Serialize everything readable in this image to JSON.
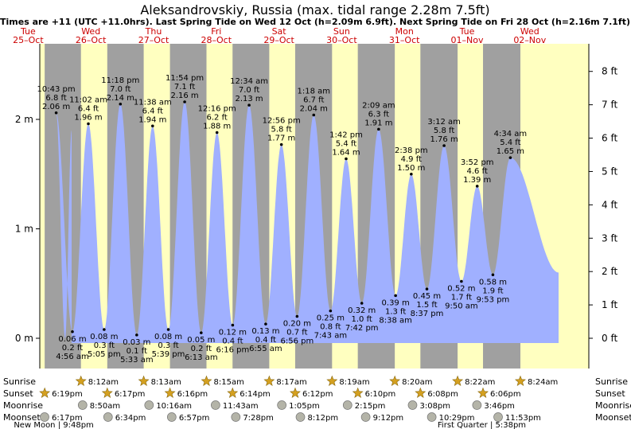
{
  "chart_data": {
    "type": "area",
    "title": "Aleksandrovskiy, Russia (max. tidal range 2.28m 7.5ft)",
    "subtitle": "Times are +11 (UTC +11.0hrs). Last Spring Tide on Wed 12 Oct (h=2.09m 6.9ft). Next Spring Tide on Fri 28 Oct (h=2.16m 7.1ft)",
    "days": [
      {
        "dow": "Tue",
        "date": "25–Oct"
      },
      {
        "dow": "Wed",
        "date": "26–Oct"
      },
      {
        "dow": "Thu",
        "date": "27–Oct"
      },
      {
        "dow": "Fri",
        "date": "28–Oct"
      },
      {
        "dow": "Sat",
        "date": "29–Oct"
      },
      {
        "dow": "Sun",
        "date": "30–Oct"
      },
      {
        "dow": "Mon",
        "date": "31–Oct"
      },
      {
        "dow": "Tue",
        "date": "01–Nov"
      },
      {
        "dow": "Wed",
        "date": "02–Nov"
      }
    ],
    "y_left_ticks": [
      {
        "value": 0,
        "label": "0 m"
      },
      {
        "value": 1,
        "label": "1 m"
      },
      {
        "value": 2,
        "label": "2 m"
      }
    ],
    "y_right_ticks": [
      {
        "value": 0,
        "label": "0 ft"
      },
      {
        "value": 1,
        "label": "1 ft"
      },
      {
        "value": 2,
        "label": "2 ft"
      },
      {
        "value": 3,
        "label": "3 ft"
      },
      {
        "value": 4,
        "label": "4 ft"
      },
      {
        "value": 5,
        "label": "5 ft"
      },
      {
        "value": 6,
        "label": "6 ft"
      },
      {
        "value": 7,
        "label": "7 ft"
      },
      {
        "value": 8,
        "label": "8 ft"
      }
    ],
    "ylim_m": [
      -0.25,
      2.62
    ],
    "start_value_m": 1.9,
    "end_value_m": 0.6,
    "tides": [
      {
        "type": "high",
        "day": 0,
        "hour": 22.72,
        "time": "10:43 pm",
        "ft": "6.8 ft",
        "m": "2.06 m",
        "value": 2.06
      },
      {
        "type": "low",
        "day": 1,
        "hour": 4.93,
        "time": "4:56 am",
        "ft": "0.2 ft",
        "m": "0.06 m",
        "value": 0.06
      },
      {
        "type": "high",
        "day": 1,
        "hour": 11.03,
        "time": "11:02 am",
        "ft": "6.4 ft",
        "m": "1.96 m",
        "value": 1.96
      },
      {
        "type": "low",
        "day": 1,
        "hour": 17.08,
        "time": "5:05 pm",
        "ft": "0.3 ft",
        "m": "0.08 m",
        "value": 0.08
      },
      {
        "type": "high",
        "day": 1,
        "hour": 23.3,
        "time": "11:18 pm",
        "ft": "7.0 ft",
        "m": "2.14 m",
        "value": 2.14
      },
      {
        "type": "low",
        "day": 2,
        "hour": 5.55,
        "time": "5:33 am",
        "ft": "0.1 ft",
        "m": "0.03 m",
        "value": 0.03
      },
      {
        "type": "high",
        "day": 2,
        "hour": 11.63,
        "time": "11:38 am",
        "ft": "6.4 ft",
        "m": "1.94 m",
        "value": 1.94
      },
      {
        "type": "low",
        "day": 2,
        "hour": 17.65,
        "time": "5:39 pm",
        "ft": "0.3 ft",
        "m": "0.08 m",
        "value": 0.08
      },
      {
        "type": "high",
        "day": 2,
        "hour": 23.9,
        "time": "11:54 pm",
        "ft": "7.1 ft",
        "m": "2.16 m",
        "value": 2.16
      },
      {
        "type": "low",
        "day": 3,
        "hour": 6.22,
        "time": "6:13 am",
        "ft": "0.2 ft",
        "m": "0.05 m",
        "value": 0.05
      },
      {
        "type": "high",
        "day": 3,
        "hour": 12.27,
        "time": "12:16 pm",
        "ft": "6.2 ft",
        "m": "1.88 m",
        "value": 1.88
      },
      {
        "type": "low",
        "day": 3,
        "hour": 18.27,
        "time": "6:16 pm",
        "ft": "0.4 ft",
        "m": "0.12 m",
        "value": 0.12
      },
      {
        "type": "high",
        "day": 4,
        "hour": 0.57,
        "time": "12:34 am",
        "ft": "7.0 ft",
        "m": "2.13 m",
        "value": 2.13
      },
      {
        "type": "low",
        "day": 4,
        "hour": 6.92,
        "time": "6:55 am",
        "ft": "0.4 ft",
        "m": "0.13 m",
        "value": 0.13
      },
      {
        "type": "high",
        "day": 4,
        "hour": 12.93,
        "time": "12:56 pm",
        "ft": "5.8 ft",
        "m": "1.77 m",
        "value": 1.77
      },
      {
        "type": "low",
        "day": 4,
        "hour": 18.93,
        "time": "6:56 pm",
        "ft": "0.7 ft",
        "m": "0.20 m",
        "value": 0.2
      },
      {
        "type": "high",
        "day": 5,
        "hour": 1.3,
        "time": "1:18 am",
        "ft": "6.7 ft",
        "m": "2.04 m",
        "value": 2.04
      },
      {
        "type": "low",
        "day": 5,
        "hour": 7.72,
        "time": "7:43 am",
        "ft": "0.8 ft",
        "m": "0.25 m",
        "value": 0.25
      },
      {
        "type": "high",
        "day": 5,
        "hour": 13.7,
        "time": "1:42 pm",
        "ft": "5.4 ft",
        "m": "1.64 m",
        "value": 1.64
      },
      {
        "type": "low",
        "day": 5,
        "hour": 19.7,
        "time": "7:42 pm",
        "ft": "1.0 ft",
        "m": "0.32 m",
        "value": 0.32
      },
      {
        "type": "high",
        "day": 6,
        "hour": 2.15,
        "time": "2:09 am",
        "ft": "6.3 ft",
        "m": "1.91 m",
        "value": 1.91
      },
      {
        "type": "low",
        "day": 6,
        "hour": 8.63,
        "time": "8:38 am",
        "ft": "1.3 ft",
        "m": "0.39 m",
        "value": 0.39
      },
      {
        "type": "high",
        "day": 6,
        "hour": 14.63,
        "time": "2:38 pm",
        "ft": "4.9 ft",
        "m": "1.50 m",
        "value": 1.5
      },
      {
        "type": "low",
        "day": 6,
        "hour": 20.62,
        "time": "8:37 pm",
        "ft": "1.5 ft",
        "m": "0.45 m",
        "value": 0.45
      },
      {
        "type": "high",
        "day": 7,
        "hour": 3.2,
        "time": "3:12 am",
        "ft": "5.8 ft",
        "m": "1.76 m",
        "value": 1.76
      },
      {
        "type": "low",
        "day": 7,
        "hour": 9.83,
        "time": "9:50 am",
        "ft": "1.7 ft",
        "m": "0.52 m",
        "value": 0.52
      },
      {
        "type": "high",
        "day": 7,
        "hour": 15.87,
        "time": "3:52 pm",
        "ft": "4.6 ft",
        "m": "1.39 m",
        "value": 1.39
      },
      {
        "type": "low",
        "day": 7,
        "hour": 21.88,
        "time": "9:53 pm",
        "ft": "1.9 ft",
        "m": "0.58 m",
        "value": 0.58
      },
      {
        "type": "high",
        "day": 8,
        "hour": 4.57,
        "time": "4:34 am",
        "ft": "5.4 ft",
        "m": "1.65 m",
        "value": 1.65
      }
    ],
    "sun_moon": {
      "rows": [
        "Sunrise",
        "Sunset",
        "Moonrise",
        "Moonset"
      ],
      "sunrise": [
        {
          "day": 1,
          "hour": 8.2,
          "time": "8:12am"
        },
        {
          "day": 2,
          "hour": 8.22,
          "time": "8:13am"
        },
        {
          "day": 3,
          "hour": 8.25,
          "time": "8:15am"
        },
        {
          "day": 4,
          "hour": 8.28,
          "time": "8:17am"
        },
        {
          "day": 5,
          "hour": 8.32,
          "time": "8:19am"
        },
        {
          "day": 6,
          "hour": 8.33,
          "time": "8:20am"
        },
        {
          "day": 7,
          "hour": 8.37,
          "time": "8:22am"
        },
        {
          "day": 8,
          "hour": 8.4,
          "time": "8:24am"
        }
      ],
      "sunset": [
        {
          "day": 0,
          "hour": 18.32,
          "time": "6:19pm"
        },
        {
          "day": 1,
          "hour": 18.28,
          "time": "6:17pm"
        },
        {
          "day": 2,
          "hour": 18.27,
          "time": "6:16pm"
        },
        {
          "day": 3,
          "hour": 18.23,
          "time": "6:14pm"
        },
        {
          "day": 4,
          "hour": 18.2,
          "time": "6:12pm"
        },
        {
          "day": 5,
          "hour": 18.17,
          "time": "6:10pm"
        },
        {
          "day": 6,
          "hour": 18.13,
          "time": "6:08pm"
        },
        {
          "day": 7,
          "hour": 18.1,
          "time": "6:06pm"
        }
      ],
      "moonrise": [
        {
          "day": 1,
          "hour": 8.83,
          "time": "8:50am"
        },
        {
          "day": 2,
          "hour": 10.27,
          "time": "10:16am"
        },
        {
          "day": 3,
          "hour": 11.72,
          "time": "11:43am"
        },
        {
          "day": 4,
          "hour": 13.08,
          "time": "1:05pm"
        },
        {
          "day": 5,
          "hour": 14.25,
          "time": "2:15pm"
        },
        {
          "day": 6,
          "hour": 15.13,
          "time": "3:08pm"
        },
        {
          "day": 7,
          "hour": 15.77,
          "time": "3:46pm"
        }
      ],
      "moonset": [
        {
          "day": 0,
          "hour": 18.28,
          "time": "6:17pm"
        },
        {
          "day": 1,
          "hour": 18.57,
          "time": "6:34pm"
        },
        {
          "day": 2,
          "hour": 18.95,
          "time": "6:57pm"
        },
        {
          "day": 3,
          "hour": 19.47,
          "time": "7:28pm"
        },
        {
          "day": 4,
          "hour": 20.2,
          "time": "8:12pm"
        },
        {
          "day": 5,
          "hour": 21.2,
          "time": "9:12pm"
        },
        {
          "day": 6,
          "hour": 22.48,
          "time": "10:29pm"
        },
        {
          "day": 7,
          "hour": 23.88,
          "time": "11:53pm"
        }
      ],
      "phases": [
        {
          "day": 0,
          "hour": 21.8,
          "text": "New Moon | 9:48pm"
        },
        {
          "day": 7,
          "hour": 17.63,
          "text": "First Quarter | 5:38pm"
        }
      ]
    },
    "colors": {
      "day": "#ffffc0",
      "night": "#a0a0a0",
      "water": "#a0b0ff",
      "star": "#d4a020",
      "moon": "#b4b4a8",
      "date_label": "#cc0000"
    }
  }
}
